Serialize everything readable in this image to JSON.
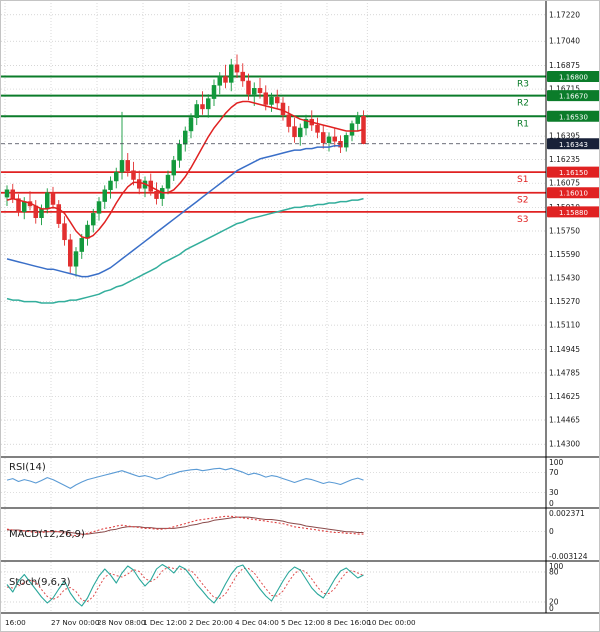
{
  "chart_data": {
    "type": "candlestick",
    "price_axis_ticks": [
      "1.17220",
      "1.17040",
      "1.16875",
      "1.16715",
      "1.16395",
      "1.16235",
      "1.16075",
      "1.15910",
      "1.15750",
      "1.15590",
      "1.15430",
      "1.15270",
      "1.15110",
      "1.14945",
      "1.14785",
      "1.14625",
      "1.14465",
      "1.14300"
    ],
    "pivots": [
      {
        "label": "R3",
        "value": 1.168,
        "kind": "resistance"
      },
      {
        "label": "R2",
        "value": 1.1667,
        "kind": "resistance"
      },
      {
        "label": "R1",
        "value": 1.1653,
        "kind": "resistance"
      },
      {
        "label": "S1",
        "value": 1.1615,
        "kind": "support"
      },
      {
        "label": "S2",
        "value": 1.1601,
        "kind": "support"
      },
      {
        "label": "S3",
        "value": 1.1588,
        "kind": "support"
      }
    ],
    "last_price": 1.16343,
    "candles": [
      [
        1.1598,
        1.1606,
        1.1592,
        1.1603
      ],
      [
        1.1603,
        1.1607,
        1.1594,
        1.1597
      ],
      [
        1.1597,
        1.16,
        1.1585,
        1.1588
      ],
      [
        1.1588,
        1.1598,
        1.1583,
        1.1595
      ],
      [
        1.1595,
        1.1602,
        1.1589,
        1.1592
      ],
      [
        1.1592,
        1.1596,
        1.158,
        1.1584
      ],
      [
        1.1584,
        1.1593,
        1.1579,
        1.159
      ],
      [
        1.159,
        1.1604,
        1.1587,
        1.1601
      ],
      [
        1.1601,
        1.1605,
        1.159,
        1.1593
      ],
      [
        1.1593,
        1.1596,
        1.1577,
        1.158
      ],
      [
        1.158,
        1.1585,
        1.1565,
        1.1569
      ],
      [
        1.1569,
        1.1573,
        1.1546,
        1.1551
      ],
      [
        1.1551,
        1.1564,
        1.1544,
        1.1561
      ],
      [
        1.1561,
        1.1573,
        1.1556,
        1.157
      ],
      [
        1.157,
        1.1582,
        1.1565,
        1.1579
      ],
      [
        1.1579,
        1.159,
        1.1574,
        1.1587
      ],
      [
        1.1587,
        1.1598,
        1.1582,
        1.1595
      ],
      [
        1.1595,
        1.1606,
        1.159,
        1.1603
      ],
      [
        1.1603,
        1.1612,
        1.1597,
        1.1609
      ],
      [
        1.1609,
        1.1618,
        1.1604,
        1.1615
      ],
      [
        1.1615,
        1.1656,
        1.161,
        1.1623
      ],
      [
        1.1623,
        1.1628,
        1.1612,
        1.1616
      ],
      [
        1.1616,
        1.1622,
        1.1606,
        1.161
      ],
      [
        1.161,
        1.1616,
        1.16,
        1.1604
      ],
      [
        1.1604,
        1.1612,
        1.1598,
        1.1609
      ],
      [
        1.1609,
        1.1614,
        1.1599,
        1.1602
      ],
      [
        1.1602,
        1.1608,
        1.1593,
        1.1597
      ],
      [
        1.1597,
        1.1606,
        1.1592,
        1.1604
      ],
      [
        1.1604,
        1.1616,
        1.16,
        1.1613
      ],
      [
        1.1613,
        1.1626,
        1.1609,
        1.1623
      ],
      [
        1.1623,
        1.1637,
        1.1618,
        1.1634
      ],
      [
        1.1634,
        1.1646,
        1.1629,
        1.1643
      ],
      [
        1.1643,
        1.1655,
        1.1638,
        1.1652
      ],
      [
        1.1652,
        1.1664,
        1.1647,
        1.1661
      ],
      [
        1.1661,
        1.167,
        1.1654,
        1.1658
      ],
      [
        1.1658,
        1.1668,
        1.1652,
        1.1665
      ],
      [
        1.1665,
        1.1678,
        1.166,
        1.1674
      ],
      [
        1.1674,
        1.1683,
        1.1668,
        1.168
      ],
      [
        1.168,
        1.1688,
        1.1672,
        1.1676
      ],
      [
        1.1676,
        1.1692,
        1.167,
        1.1688
      ],
      [
        1.1688,
        1.1695,
        1.1679,
        1.1683
      ],
      [
        1.1683,
        1.1689,
        1.1673,
        1.1677
      ],
      [
        1.1677,
        1.1682,
        1.1664,
        1.1668
      ],
      [
        1.1668,
        1.1676,
        1.166,
        1.1672
      ],
      [
        1.1672,
        1.1679,
        1.1665,
        1.1669
      ],
      [
        1.1669,
        1.1674,
        1.1657,
        1.1661
      ],
      [
        1.1661,
        1.1669,
        1.1656,
        1.1666
      ],
      [
        1.1666,
        1.1671,
        1.1658,
        1.1662
      ],
      [
        1.1662,
        1.1666,
        1.165,
        1.1654
      ],
      [
        1.1654,
        1.166,
        1.1642,
        1.1646
      ],
      [
        1.1646,
        1.1652,
        1.1635,
        1.1639
      ],
      [
        1.1639,
        1.1648,
        1.1633,
        1.1645
      ],
      [
        1.1645,
        1.1654,
        1.164,
        1.1651
      ],
      [
        1.1651,
        1.1657,
        1.1643,
        1.1647
      ],
      [
        1.1647,
        1.1652,
        1.1638,
        1.1642
      ],
      [
        1.1642,
        1.1647,
        1.1631,
        1.1635
      ],
      [
        1.1635,
        1.1642,
        1.1629,
        1.1639
      ],
      [
        1.1639,
        1.1645,
        1.1632,
        1.1636
      ],
      [
        1.1636,
        1.164,
        1.1628,
        1.1632
      ],
      [
        1.1632,
        1.1642,
        1.1629,
        1.164
      ],
      [
        1.164,
        1.165,
        1.1636,
        1.1648
      ],
      [
        1.1648,
        1.1656,
        1.1643,
        1.1653
      ],
      [
        1.1653,
        1.1657,
        1.1634,
        1.16343
      ]
    ],
    "moving_averages": [
      {
        "name": "ma-fast-red",
        "color": "#e02222",
        "values": [
          1.1596,
          1.1597,
          1.1596,
          1.1595,
          1.1594,
          1.1592,
          1.159,
          1.159,
          1.1591,
          1.159,
          1.1587,
          1.1581,
          1.1575,
          1.1571,
          1.157,
          1.1572,
          1.1576,
          1.1581,
          1.1587,
          1.1594,
          1.16,
          1.1605,
          1.1608,
          1.1608,
          1.1607,
          1.1605,
          1.1603,
          1.1601,
          1.1601,
          1.1603,
          1.1607,
          1.1612,
          1.1618,
          1.1625,
          1.1632,
          1.1639,
          1.1645,
          1.165,
          1.1655,
          1.1659,
          1.1662,
          1.1663,
          1.1663,
          1.1662,
          1.1661,
          1.166,
          1.1659,
          1.1658,
          1.1657,
          1.1655,
          1.1653,
          1.1651,
          1.165,
          1.1649,
          1.1648,
          1.1647,
          1.1646,
          1.1645,
          1.1644,
          1.1643,
          1.1643,
          1.1643,
          1.1644
        ]
      },
      {
        "name": "ma-mid-blue",
        "color": "#3a6fc8",
        "values": [
          1.1556,
          1.1555,
          1.1554,
          1.1553,
          1.1552,
          1.1551,
          1.155,
          1.1549,
          1.1549,
          1.1548,
          1.1547,
          1.1546,
          1.1545,
          1.1544,
          1.1544,
          1.1545,
          1.1546,
          1.1548,
          1.155,
          1.1553,
          1.1556,
          1.1559,
          1.1562,
          1.1565,
          1.1568,
          1.1571,
          1.1574,
          1.1577,
          1.158,
          1.1583,
          1.1586,
          1.1589,
          1.1592,
          1.1595,
          1.1598,
          1.1601,
          1.1604,
          1.1607,
          1.161,
          1.1613,
          1.1616,
          1.1618,
          1.162,
          1.1622,
          1.1624,
          1.1625,
          1.1626,
          1.1627,
          1.1628,
          1.1629,
          1.163,
          1.163,
          1.1631,
          1.1631,
          1.1632,
          1.1632,
          1.1632,
          1.1633,
          1.1633,
          null,
          null,
          null,
          null
        ]
      },
      {
        "name": "ma-slow-teal",
        "color": "#33ae9c",
        "values": [
          1.1529,
          1.1528,
          1.1528,
          1.1527,
          1.1527,
          1.1527,
          1.1526,
          1.1526,
          1.1526,
          1.1527,
          1.1527,
          1.1528,
          1.1528,
          1.1529,
          1.153,
          1.1531,
          1.1532,
          1.1534,
          1.1535,
          1.1537,
          1.1538,
          1.154,
          1.1542,
          1.1544,
          1.1546,
          1.1548,
          1.155,
          1.1553,
          1.1555,
          1.1557,
          1.1559,
          1.1562,
          1.1564,
          1.1566,
          1.1568,
          1.157,
          1.1572,
          1.1574,
          1.1576,
          1.1578,
          1.158,
          1.1581,
          1.1583,
          1.1584,
          1.1585,
          1.1586,
          1.1587,
          1.1588,
          1.1589,
          1.159,
          1.1591,
          1.1591,
          1.1592,
          1.1592,
          1.1593,
          1.1593,
          1.1594,
          1.1594,
          1.1595,
          1.1595,
          1.1596,
          1.1596,
          1.1597
        ]
      }
    ],
    "time_axis": {
      "labels": [
        {
          "text": "16:00",
          "ci": 0
        },
        {
          "text": "27 Nov 00:00",
          "ci": 8
        },
        {
          "text": "28 Nov 08:00",
          "ci": 16
        },
        {
          "text": "1 Dec 12:00",
          "ci": 24
        },
        {
          "text": "2 Dec 20:00",
          "ci": 32
        },
        {
          "text": "4 Dec 04:00",
          "ci": 40
        },
        {
          "text": "5 Dec 12:00",
          "ci": 48
        },
        {
          "text": "8 Dec 16:00",
          "ci": 56
        },
        {
          "text": "10 Dec 00:00",
          "ci": 63
        }
      ]
    },
    "indicators": {
      "rsi": {
        "label": "RSI(14)",
        "axis": [
          {
            "text": "100",
            "value": 100
          },
          {
            "text": "70",
            "value": 70
          },
          {
            "text": "30",
            "value": 30
          },
          {
            "text": "0",
            "value": 0
          }
        ],
        "levels": [
          70,
          30
        ],
        "range": [
          0,
          100
        ],
        "values": [
          55,
          58,
          52,
          56,
          53,
          49,
          54,
          60,
          56,
          50,
          44,
          38,
          45,
          51,
          56,
          59,
          62,
          65,
          68,
          71,
          74,
          70,
          66,
          62,
          64,
          61,
          57,
          60,
          65,
          68,
          72,
          74,
          76,
          77,
          74,
          76,
          78,
          79,
          76,
          79,
          75,
          71,
          66,
          69,
          66,
          61,
          64,
          62,
          58,
          54,
          50,
          54,
          58,
          56,
          52,
          48,
          51,
          49,
          46,
          51,
          56,
          59,
          55
        ]
      },
      "macd": {
        "label": "MACD(12,26,9)",
        "axis": [
          {
            "text": "0.002371",
            "value": 0.002371
          },
          {
            "text": "0",
            "value": 0
          },
          {
            "text": "-0.003124",
            "value": -0.003124
          }
        ],
        "levels": [
          0
        ],
        "range": [
          -0.0035,
          0.0028
        ],
        "macd": [
          0.0003,
          0.0002,
          0.0001,
          0.0001,
          0.0,
          -0.0001,
          -0.0001,
          0.0,
          0.0001,
          0.0,
          -0.0002,
          -0.0004,
          -0.0005,
          -0.0004,
          -0.0002,
          0.0,
          0.0002,
          0.0004,
          0.0005,
          0.0007,
          0.0008,
          0.0007,
          0.0006,
          0.0005,
          0.0004,
          0.0004,
          0.0003,
          0.0003,
          0.0004,
          0.0006,
          0.0008,
          0.001,
          0.0012,
          0.0014,
          0.0015,
          0.0016,
          0.0017,
          0.0018,
          0.0019,
          0.0019,
          0.0018,
          0.0017,
          0.0016,
          0.0015,
          0.0014,
          0.0013,
          0.0012,
          0.0011,
          0.001,
          0.0008,
          0.0006,
          0.0005,
          0.0004,
          0.0003,
          0.0002,
          0.0001,
          0.0,
          -0.0001,
          -0.0001,
          -0.0002,
          -0.0002,
          -0.0003,
          -0.0003
        ],
        "signal": [
          0.0002,
          0.0002,
          0.0002,
          0.0001,
          0.0001,
          0.0001,
          0.0,
          0.0,
          0.0,
          0.0,
          0.0,
          -0.0001,
          -0.0002,
          -0.0003,
          -0.0003,
          -0.0002,
          -0.0001,
          0.0,
          0.0002,
          0.0003,
          0.0005,
          0.0006,
          0.0006,
          0.0006,
          0.0005,
          0.0005,
          0.0004,
          0.0004,
          0.0004,
          0.0004,
          0.0005,
          0.0006,
          0.0008,
          0.0009,
          0.0011,
          0.0012,
          0.0014,
          0.0015,
          0.0016,
          0.0017,
          0.0018,
          0.0018,
          0.0018,
          0.0017,
          0.0016,
          0.0015,
          0.0015,
          0.0014,
          0.0013,
          0.0011,
          0.001,
          0.0009,
          0.0007,
          0.0006,
          0.0005,
          0.0004,
          0.0003,
          0.0002,
          0.0001,
          0.0,
          0.0,
          -0.0001,
          -0.0001
        ]
      },
      "stoch": {
        "label": "Stoch(9,6,3)",
        "axis": [
          {
            "text": "100",
            "value": 100
          },
          {
            "text": "80",
            "value": 80
          },
          {
            "text": "20",
            "value": 20
          },
          {
            "text": "0",
            "value": 0
          }
        ],
        "levels": [
          80,
          20
        ],
        "range": [
          0,
          100
        ],
        "k": [
          55,
          40,
          62,
          75,
          60,
          45,
          30,
          18,
          28,
          46,
          62,
          38,
          22,
          12,
          28,
          52,
          72,
          86,
          74,
          58,
          78,
          92,
          84,
          66,
          52,
          64,
          86,
          95,
          88,
          78,
          92,
          86,
          72,
          55,
          42,
          28,
          18,
          34,
          56,
          76,
          90,
          94,
          78,
          62,
          46,
          32,
          22,
          42,
          62,
          80,
          90,
          84,
          66,
          48,
          36,
          28,
          46,
          66,
          82,
          88,
          78,
          68,
          74
        ],
        "d": [
          50,
          48,
          52,
          59,
          63,
          60,
          45,
          31,
          25,
          31,
          45,
          49,
          41,
          24,
          21,
          31,
          51,
          70,
          77,
          73,
          70,
          76,
          85,
          81,
          67,
          61,
          67,
          82,
          90,
          87,
          86,
          85,
          83,
          71,
          56,
          42,
          29,
          27,
          36,
          55,
          74,
          87,
          87,
          78,
          62,
          47,
          33,
          32,
          42,
          61,
          77,
          85,
          80,
          66,
          50,
          37,
          37,
          47,
          65,
          79,
          83,
          78,
          73
        ]
      }
    },
    "colors": {
      "up": "#12993c",
      "down": "#e22f2f",
      "resistance": "#0b7c2a",
      "support": "#e02222",
      "grid": "#c9c9c9",
      "axis_line": "#000000",
      "last_badge": "#182138",
      "last_line": "#3a3f4c",
      "rsi_line": "#5b9bd5",
      "macd_line": "#e04040",
      "macd_signal": "#8a4a4a",
      "stoch_k": "#2aa79b",
      "stoch_d": "#e05050"
    }
  }
}
